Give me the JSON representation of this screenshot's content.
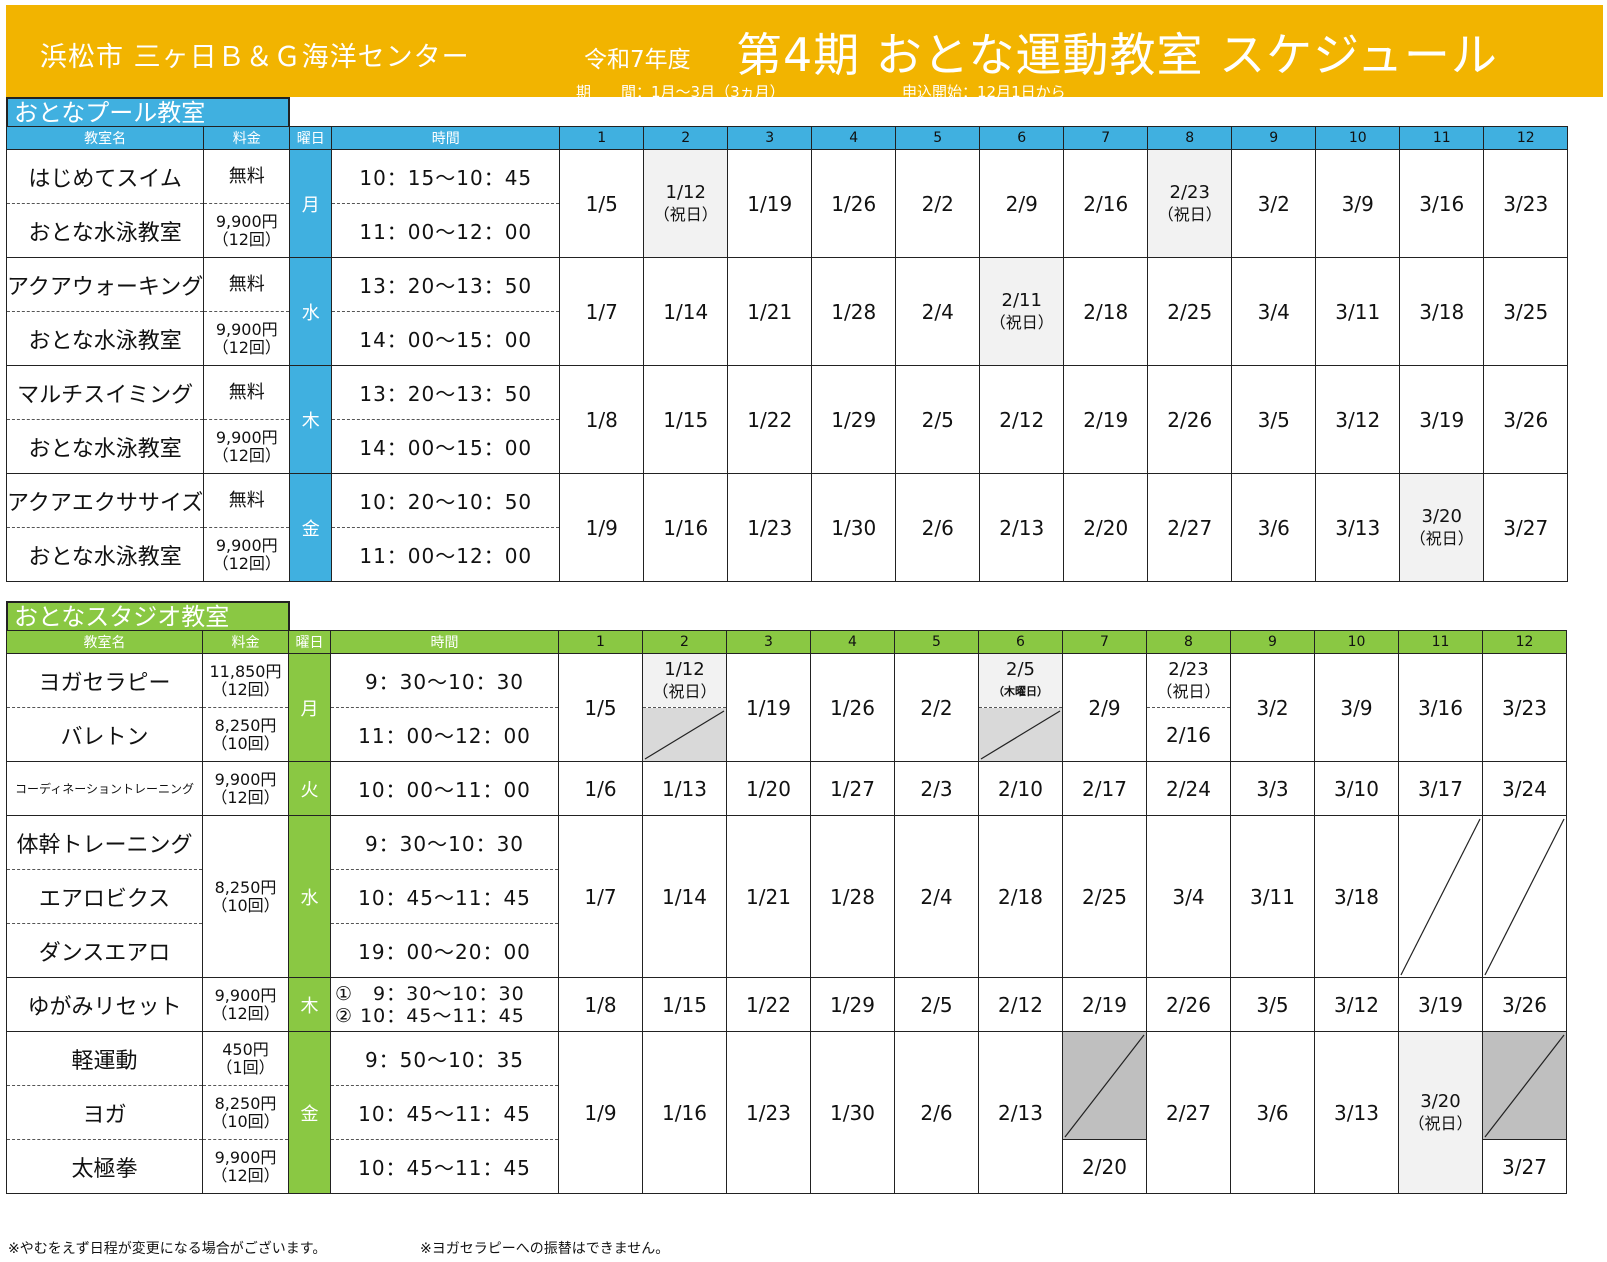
{
  "header": {
    "org": "浜松市 三ヶ日Ｂ＆Ｇ海洋センター",
    "fiscal_year": "令和7年度",
    "title": "第4期 おとな運動教室 スケジュール",
    "period": "期　　間：1月～3月（3ヵ月）",
    "application": "申込開始：12月1日から"
  },
  "colors": {
    "banner": "#f2b400",
    "pool": "#40b0e0",
    "studio": "#8ac843"
  },
  "columns": {
    "name": "教室名",
    "fee": "料金",
    "day": "曜日",
    "time": "時間",
    "weeks": [
      "1",
      "2",
      "3",
      "4",
      "5",
      "6",
      "7",
      "8",
      "9",
      "10",
      "11",
      "12"
    ]
  },
  "pool": {
    "section_title": "おとなプール教室",
    "groups": [
      {
        "day": "月",
        "classes": [
          {
            "name": "はじめてスイム",
            "fee": "無料",
            "time": "10：15～10：45"
          },
          {
            "name": "おとな水泳教室",
            "fee": "9,900円",
            "fee_note": "（12回）",
            "time": "11：00～12：00"
          }
        ],
        "dates": [
          "1/5",
          "1/12",
          "1/19",
          "1/26",
          "2/2",
          "2/9",
          "2/16",
          "2/23",
          "3/2",
          "3/9",
          "3/16",
          "3/23"
        ],
        "notes": {
          "1": "（祝日）",
          "7": "（祝日）"
        }
      },
      {
        "day": "水",
        "classes": [
          {
            "name": "アクアウォーキング",
            "fee": "無料",
            "time": "13：20～13：50"
          },
          {
            "name": "おとな水泳教室",
            "fee": "9,900円",
            "fee_note": "（12回）",
            "time": "14：00～15：00"
          }
        ],
        "dates": [
          "1/7",
          "1/14",
          "1/21",
          "1/28",
          "2/4",
          "2/11",
          "2/18",
          "2/25",
          "3/4",
          "3/11",
          "3/18",
          "3/25"
        ],
        "notes": {
          "5": "（祝日）"
        }
      },
      {
        "day": "木",
        "classes": [
          {
            "name": "マルチスイミング",
            "fee": "無料",
            "time": "13：20～13：50"
          },
          {
            "name": "おとな水泳教室",
            "fee": "9,900円",
            "fee_note": "（12回）",
            "time": "14：00～15：00"
          }
        ],
        "dates": [
          "1/8",
          "1/15",
          "1/22",
          "1/29",
          "2/5",
          "2/12",
          "2/19",
          "2/26",
          "3/5",
          "3/12",
          "3/19",
          "3/26"
        ],
        "notes": {}
      },
      {
        "day": "金",
        "classes": [
          {
            "name": "アクアエクササイズ",
            "fee": "無料",
            "time": "10：20～10：50"
          },
          {
            "name": "おとな水泳教室",
            "fee": "9,900円",
            "fee_note": "（12回）",
            "time": "11：00～12：00"
          }
        ],
        "dates": [
          "1/9",
          "1/16",
          "1/23",
          "1/30",
          "2/6",
          "2/13",
          "2/20",
          "2/27",
          "3/6",
          "3/13",
          "3/20",
          "3/27"
        ],
        "notes": {
          "10": "（祝日）"
        }
      }
    ]
  },
  "studio": {
    "section_title": "おとなスタジオ教室",
    "mon": {
      "day": "月",
      "classes": [
        {
          "name": "ヨガセラピー",
          "fee": "11,850円",
          "fee_note": "（12回）",
          "time": "9：30～10：30"
        },
        {
          "name": "バレトン",
          "fee": "8,250円",
          "fee_note": "（10回）",
          "time": "11：00～12：00"
        }
      ],
      "dates": [
        "1/5",
        "1/12",
        "1/19",
        "1/26",
        "2/2",
        "2/5",
        "2/9",
        "2/23",
        "3/2",
        "3/9",
        "3/16",
        "3/23"
      ],
      "note_w2": "（祝日）",
      "note_w6": "（木曜日）",
      "note_w8": "（祝日）",
      "w8_bottom": "2/16"
    },
    "tue": {
      "day": "火",
      "name": "コーディネーショントレーニング",
      "fee": "9,900円",
      "fee_note": "（12回）",
      "time": "10：00～11：00",
      "dates": [
        "1/6",
        "1/13",
        "1/20",
        "1/27",
        "2/3",
        "2/10",
        "2/17",
        "2/24",
        "3/3",
        "3/10",
        "3/17",
        "3/24"
      ]
    },
    "wed": {
      "day": "水",
      "fee": "8,250円",
      "fee_note": "（10回）",
      "classes": [
        {
          "name": "体幹トレーニング",
          "time": "9：30～10：30"
        },
        {
          "name": "エアロビクス",
          "time": "10：45～11：45"
        },
        {
          "name": "ダンスエアロ",
          "time": "19：00～20：00"
        }
      ],
      "dates": [
        "1/7",
        "1/14",
        "1/21",
        "1/28",
        "2/4",
        "2/18",
        "2/25",
        "3/4",
        "3/11",
        "3/18"
      ]
    },
    "thu": {
      "day": "木",
      "name": "ゆがみリセット",
      "fee": "9,900円",
      "fee_note": "（12回）",
      "time1": "①　9：30～10：30",
      "time2": "② 10：45～11：45",
      "dates": [
        "1/8",
        "1/15",
        "1/22",
        "1/29",
        "2/5",
        "2/12",
        "2/19",
        "2/26",
        "3/5",
        "3/12",
        "3/19",
        "3/26"
      ]
    },
    "fri": {
      "day": "金",
      "classes": [
        {
          "name": "軽運動",
          "fee": "450円",
          "fee_note": "（1回）",
          "time": "9：50～10：35"
        },
        {
          "name": "ヨガ",
          "fee": "8,250円",
          "fee_note": "（10回）",
          "time": "10：45～11：45"
        },
        {
          "name": "太極拳",
          "fee": "9,900円",
          "fee_note": "（12回）",
          "time": "10：45～11：45"
        }
      ],
      "dates": [
        "1/9",
        "1/16",
        "1/23",
        "1/30",
        "2/6",
        "2/13",
        "2/27",
        "3/6",
        "3/13",
        "3/20"
      ],
      "note_w11": "（祝日）",
      "w7_bottom": "2/20",
      "w12_bottom": "3/27"
    }
  },
  "footer": {
    "note1": "※やむをえず日程が変更になる場合がございます。",
    "note2": "※ヨガセラピーへの振替はできません。"
  }
}
